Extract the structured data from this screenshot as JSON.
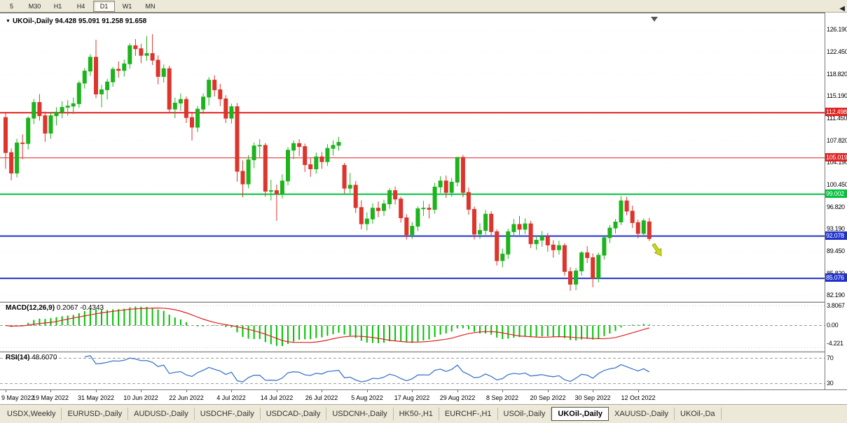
{
  "colors": {
    "bull": "#1db31d",
    "bear": "#dd342c",
    "macd_hist": "#00c000",
    "macd_signal": "#e02020",
    "rsi_line": "#3c78c8",
    "arrow": "#ccd81c",
    "arrow_border": "#9aa816",
    "hline_red": "#e02222",
    "hline_green": "#00c43c",
    "hline_blue": "#2030cc"
  },
  "toolbar": {
    "timeframes": [
      "5",
      "M30",
      "H1",
      "H4",
      "D1",
      "W1",
      "MN"
    ],
    "active": "D1"
  },
  "chart": {
    "title_symbol": "UKOil-,Daily",
    "title_ohlc": "94.428 95.091 91.258 91.658",
    "window_menu_icon": "▼"
  },
  "macd_panel": {
    "label": "MACD(12,26,9)",
    "value_main": "0.2067",
    "value_signal": "-0.4343",
    "scale_top": "3.8067",
    "scale_zero": "0.00",
    "scale_bottom": "-4.221"
  },
  "rsi_panel": {
    "label": "RSI(14)",
    "value": "48.6070",
    "level_top": "70",
    "level_bottom": "30"
  },
  "tabs": {
    "items": [
      "USDX,Weekly",
      "EURUSD-,Daily",
      "AUDUSD-,Daily",
      "USDCHF-,Daily",
      "USDCAD-,Daily",
      "USDCNH-,Daily",
      "HK50-,H1",
      "EURCHF-,H1",
      "USOil-,Daily",
      "UKOil-,Daily",
      "XAUUSD-,Daily",
      "UKOil-,Da"
    ],
    "active": "UKOil-,Daily",
    "scroll_left_icon": "◀"
  },
  "chart_data": {
    "type": "candlestick",
    "symbol": "UKOil-",
    "timeframe": "Daily",
    "current_bar": {
      "open": 94.428,
      "high": 95.091,
      "low": 91.258,
      "close": 91.658
    },
    "y_range": [
      82.19,
      126.19
    ],
    "price_ticks": [
      "126.190",
      "122.450",
      "118.820",
      "115.190",
      "111.450",
      "107.820",
      "104.190",
      "100.450",
      "96.820",
      "93.190",
      "89.450",
      "85.820",
      "82.190"
    ],
    "x_tick_labels": [
      {
        "text": "9 May 2022",
        "bar_index": 0
      },
      {
        "text": "19 May 2022",
        "bar_index": 8
      },
      {
        "text": "31 May 2022",
        "bar_index": 16
      },
      {
        "text": "10 Jun 2022",
        "bar_index": 24
      },
      {
        "text": "22 Jun 2022",
        "bar_index": 32
      },
      {
        "text": "4 Jul 2022",
        "bar_index": 40
      },
      {
        "text": "14 Jul 2022",
        "bar_index": 48
      },
      {
        "text": "26 Jul 2022",
        "bar_index": 56
      },
      {
        "text": "5 Aug 2022",
        "bar_index": 64
      },
      {
        "text": "17 Aug 2022",
        "bar_index": 72
      },
      {
        "text": "29 Aug 2022",
        "bar_index": 80
      },
      {
        "text": "8 Sep 2022",
        "bar_index": 88
      },
      {
        "text": "20 Sep 2022",
        "bar_index": 96
      },
      {
        "text": "30 Sep 2022",
        "bar_index": 104
      },
      {
        "text": "12 Oct 2022",
        "bar_index": 112
      }
    ],
    "hlines": [
      {
        "price": 112.498,
        "label": "112.498",
        "color": "#e02222",
        "width": 2
      },
      {
        "price": 105.019,
        "label": "105.019",
        "color": "#e02222",
        "width": 1
      },
      {
        "price": 99.002,
        "label": "99.002",
        "color": "#00c43c",
        "width": 2
      },
      {
        "price": 92.078,
        "label": "92.078",
        "color": "#2030cc",
        "width": 2
      },
      {
        "price": 85.076,
        "label": "85.076",
        "color": "#2030cc",
        "width": 2
      }
    ],
    "candles": [
      [
        111.7,
        112.4,
        103.2,
        105.9
      ],
      [
        105.9,
        106.6,
        101.3,
        102.5
      ],
      [
        102.5,
        108.2,
        101.8,
        107.5
      ],
      [
        107.5,
        108.9,
        104.8,
        107.4
      ],
      [
        107.4,
        111.9,
        106.4,
        111.6
      ],
      [
        111.6,
        114.8,
        110.6,
        114.2
      ],
      [
        114.2,
        115.6,
        111.2,
        112.0
      ],
      [
        112.0,
        112.7,
        107.7,
        109.1
      ],
      [
        109.1,
        112.5,
        108.2,
        112.0
      ],
      [
        112.0,
        113.4,
        110.4,
        112.6
      ],
      [
        112.6,
        114.4,
        111.6,
        113.4
      ],
      [
        113.4,
        114.6,
        112.0,
        113.6
      ],
      [
        113.6,
        115.0,
        112.3,
        114.0
      ],
      [
        114.0,
        117.8,
        113.3,
        117.4
      ],
      [
        117.4,
        119.9,
        116.5,
        119.4
      ],
      [
        119.4,
        122.2,
        118.6,
        121.7
      ],
      [
        121.7,
        124.6,
        114.9,
        115.6
      ],
      [
        115.6,
        117.1,
        113.4,
        116.3
      ],
      [
        116.3,
        118.1,
        114.7,
        117.6
      ],
      [
        117.6,
        120.1,
        116.8,
        119.7
      ],
      [
        119.7,
        121.0,
        118.3,
        119.5
      ],
      [
        119.5,
        121.3,
        118.5,
        120.6
      ],
      [
        120.6,
        124.0,
        119.8,
        123.6
      ],
      [
        123.6,
        124.7,
        121.9,
        123.1
      ],
      [
        123.1,
        123.9,
        120.7,
        122.0
      ],
      [
        122.0,
        125.2,
        121.1,
        122.3
      ],
      [
        122.3,
        125.5,
        120.4,
        121.2
      ],
      [
        121.2,
        122.0,
        117.2,
        118.5
      ],
      [
        118.5,
        120.5,
        117.5,
        119.8
      ],
      [
        119.8,
        120.3,
        112.5,
        113.1
      ],
      [
        113.1,
        115.0,
        111.6,
        114.1
      ],
      [
        114.1,
        115.7,
        112.8,
        114.7
      ],
      [
        114.7,
        115.2,
        110.8,
        111.7
      ],
      [
        111.7,
        112.4,
        107.9,
        110.1
      ],
      [
        110.1,
        113.6,
        109.3,
        113.1
      ],
      [
        113.1,
        115.7,
        112.3,
        115.1
      ],
      [
        115.1,
        118.4,
        113.7,
        117.9
      ],
      [
        117.9,
        118.7,
        115.2,
        116.3
      ],
      [
        116.3,
        117.3,
        113.6,
        114.8
      ],
      [
        114.8,
        115.4,
        110.8,
        111.6
      ],
      [
        111.6,
        114.0,
        110.7,
        113.5
      ],
      [
        113.5,
        114.1,
        101.1,
        102.8
      ],
      [
        102.8,
        104.6,
        98.5,
        100.7
      ],
      [
        100.7,
        105.5,
        100.0,
        104.7
      ],
      [
        104.7,
        107.6,
        103.3,
        107.0
      ],
      [
        107.0,
        108.1,
        105.1,
        107.1
      ],
      [
        107.1,
        107.5,
        98.6,
        99.5
      ],
      [
        99.5,
        101.4,
        98.0,
        99.6
      ],
      [
        99.6,
        100.6,
        94.6,
        99.1
      ],
      [
        99.1,
        102.3,
        98.3,
        101.2
      ],
      [
        101.2,
        106.8,
        100.5,
        106.3
      ],
      [
        106.3,
        107.9,
        104.8,
        107.4
      ],
      [
        107.4,
        108.1,
        105.3,
        106.9
      ],
      [
        106.9,
        107.4,
        102.7,
        103.9
      ],
      [
        103.9,
        105.0,
        101.9,
        103.2
      ],
      [
        103.2,
        105.9,
        102.4,
        105.2
      ],
      [
        105.2,
        106.0,
        103.2,
        104.4
      ],
      [
        104.4,
        107.3,
        103.7,
        106.6
      ],
      [
        106.6,
        107.9,
        105.4,
        107.1
      ],
      [
        107.1,
        108.5,
        106.2,
        107.6
      ],
      [
        103.8,
        104.2,
        99.1,
        100.0
      ],
      [
        100.0,
        102.5,
        99.2,
        100.5
      ],
      [
        100.5,
        101.2,
        95.9,
        96.8
      ],
      [
        96.8,
        98.0,
        93.2,
        94.1
      ],
      [
        94.1,
        96.0,
        93.0,
        94.9
      ],
      [
        94.9,
        97.5,
        94.1,
        96.7
      ],
      [
        96.7,
        97.8,
        95.2,
        96.3
      ],
      [
        96.3,
        98.1,
        95.4,
        97.4
      ],
      [
        97.4,
        100.0,
        96.6,
        99.6
      ],
      [
        99.6,
        100.3,
        97.3,
        98.2
      ],
      [
        98.2,
        98.6,
        94.3,
        95.1
      ],
      [
        95.1,
        95.7,
        91.5,
        92.3
      ],
      [
        92.3,
        94.4,
        91.6,
        93.7
      ],
      [
        93.7,
        97.0,
        92.9,
        96.6
      ],
      [
        96.6,
        97.9,
        95.4,
        96.7
      ],
      [
        96.7,
        97.4,
        95.0,
        96.5
      ],
      [
        96.5,
        100.9,
        95.8,
        100.2
      ],
      [
        100.2,
        102.0,
        99.2,
        101.2
      ],
      [
        101.2,
        102.1,
        98.4,
        99.3
      ],
      [
        99.3,
        101.7,
        98.6,
        101.0
      ],
      [
        101.0,
        105.2,
        100.3,
        105.1
      ],
      [
        105.1,
        105.5,
        98.5,
        99.3
      ],
      [
        99.3,
        100.1,
        95.6,
        96.5
      ],
      [
        96.5,
        97.0,
        91.5,
        92.4
      ],
      [
        92.4,
        94.2,
        91.6,
        93.0
      ],
      [
        93.0,
        96.4,
        92.3,
        95.7
      ],
      [
        95.7,
        96.2,
        92.0,
        92.8
      ],
      [
        92.8,
        93.2,
        87.2,
        88.0
      ],
      [
        88.0,
        90.0,
        86.9,
        89.1
      ],
      [
        89.1,
        93.3,
        88.3,
        92.8
      ],
      [
        92.8,
        94.9,
        92.0,
        94.0
      ],
      [
        94.0,
        95.4,
        92.3,
        93.2
      ],
      [
        93.2,
        95.0,
        92.4,
        94.1
      ],
      [
        94.1,
        94.6,
        90.1,
        90.8
      ],
      [
        90.8,
        92.2,
        89.8,
        91.4
      ],
      [
        91.4,
        92.9,
        90.3,
        92.0
      ],
      [
        92.0,
        92.6,
        89.5,
        90.6
      ],
      [
        90.6,
        91.4,
        88.5,
        89.8
      ],
      [
        89.8,
        91.3,
        89.0,
        90.5
      ],
      [
        90.5,
        90.9,
        85.5,
        86.2
      ],
      [
        86.2,
        86.9,
        83.0,
        84.1
      ],
      [
        84.1,
        86.8,
        83.1,
        86.3
      ],
      [
        86.3,
        89.6,
        85.5,
        89.3
      ],
      [
        89.3,
        90.4,
        87.6,
        88.5
      ],
      [
        88.5,
        89.2,
        83.6,
        85.1
      ],
      [
        85.1,
        89.3,
        84.4,
        88.9
      ],
      [
        88.9,
        92.1,
        88.2,
        91.8
      ],
      [
        91.8,
        93.9,
        90.9,
        93.4
      ],
      [
        93.4,
        94.9,
        92.5,
        94.4
      ],
      [
        94.4,
        98.7,
        93.9,
        97.9
      ],
      [
        97.9,
        98.6,
        95.5,
        96.2
      ],
      [
        96.2,
        97.1,
        93.4,
        94.3
      ],
      [
        94.3,
        94.8,
        91.7,
        92.5
      ],
      [
        92.5,
        95.0,
        91.9,
        94.6
      ],
      [
        94.428,
        95.091,
        91.258,
        91.658
      ]
    ],
    "indicators": [
      {
        "type": "MACD",
        "params": [
          12,
          26,
          9
        ],
        "display_values": [
          0.2067,
          -0.4343
        ],
        "scale_labels": [
          "3.8067",
          "0.00",
          "-4.221"
        ],
        "range": [
          -4.221,
          3.8067
        ]
      },
      {
        "type": "RSI",
        "params": [
          14
        ],
        "display_value": 48.607,
        "levels": [
          70,
          30
        ],
        "display_range": [
          23,
          77
        ]
      }
    ],
    "annotations": [
      {
        "type": "arrow",
        "direction": "down-right",
        "color": "#ccd81c",
        "anchor_bar": 114,
        "anchor_price": 92.0
      }
    ]
  }
}
